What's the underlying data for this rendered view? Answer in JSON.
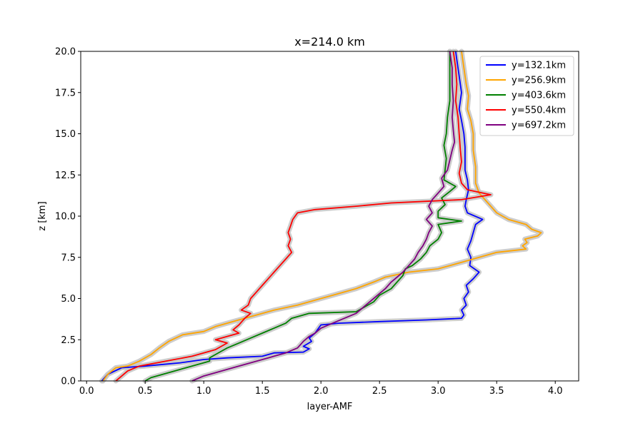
{
  "chart_data": {
    "type": "line",
    "title": "x=214.0 km",
    "xlabel": "layer-AMF",
    "ylabel": "z [km]",
    "xlim": [
      -0.05,
      4.2
    ],
    "ylim": [
      0,
      20
    ],
    "xticks": [
      0.0,
      0.5,
      1.0,
      1.5,
      2.0,
      2.5,
      3.0,
      3.5,
      4.0
    ],
    "yticks": [
      0.0,
      2.5,
      5.0,
      7.5,
      10.0,
      12.5,
      15.0,
      17.5,
      20.0
    ],
    "xtick_labels": [
      "0.0",
      "0.5",
      "1.0",
      "1.5",
      "2.0",
      "2.5",
      "3.0",
      "3.5",
      "4.0"
    ],
    "ytick_labels": [
      "0.0",
      "2.5",
      "5.0",
      "7.5",
      "10.0",
      "12.5",
      "15.0",
      "17.5",
      "20.0"
    ],
    "grid": false,
    "legend_position": "top-right",
    "uncertainty_band_color": "#c8c8c8",
    "series": [
      {
        "name": "y=132.1km",
        "color": "#0000ff",
        "points": [
          [
            0.13,
            0
          ],
          [
            0.18,
            0.4
          ],
          [
            0.3,
            0.8
          ],
          [
            0.5,
            0.9
          ],
          [
            0.8,
            1.1
          ],
          [
            1.0,
            1.3
          ],
          [
            1.2,
            1.4
          ],
          [
            1.5,
            1.5
          ],
          [
            1.6,
            1.7
          ],
          [
            1.85,
            1.75
          ],
          [
            1.9,
            1.95
          ],
          [
            1.85,
            2.1
          ],
          [
            1.92,
            2.4
          ],
          [
            1.9,
            2.6
          ],
          [
            1.95,
            2.9
          ],
          [
            1.98,
            3.2
          ],
          [
            2.0,
            3.4
          ],
          [
            2.15,
            3.5
          ],
          [
            2.5,
            3.6
          ],
          [
            2.9,
            3.7
          ],
          [
            3.2,
            3.8
          ],
          [
            3.22,
            4.0
          ],
          [
            3.2,
            4.3
          ],
          [
            3.24,
            4.6
          ],
          [
            3.22,
            5.0
          ],
          [
            3.26,
            5.4
          ],
          [
            3.24,
            5.8
          ],
          [
            3.3,
            6.2
          ],
          [
            3.35,
            6.6
          ],
          [
            3.27,
            7.0
          ],
          [
            3.28,
            7.5
          ],
          [
            3.25,
            8.0
          ],
          [
            3.28,
            8.5
          ],
          [
            3.3,
            9.0
          ],
          [
            3.32,
            9.5
          ],
          [
            3.38,
            9.8
          ],
          [
            3.25,
            10.2
          ],
          [
            3.23,
            10.6
          ],
          [
            3.24,
            11.0
          ],
          [
            3.26,
            11.6
          ],
          [
            3.25,
            12.2
          ],
          [
            3.23,
            12.8
          ],
          [
            3.23,
            13.5
          ],
          [
            3.23,
            14.2
          ],
          [
            3.22,
            15.0
          ],
          [
            3.2,
            15.8
          ],
          [
            3.18,
            16.5
          ],
          [
            3.2,
            17.5
          ],
          [
            3.18,
            18.5
          ],
          [
            3.16,
            19.5
          ],
          [
            3.15,
            20
          ]
        ]
      },
      {
        "name": "y=256.9km",
        "color": "#ffa500",
        "points": [
          [
            0.14,
            0
          ],
          [
            0.18,
            0.4
          ],
          [
            0.25,
            0.8
          ],
          [
            0.35,
            0.9
          ],
          [
            0.45,
            1.2
          ],
          [
            0.55,
            1.6
          ],
          [
            0.62,
            2.0
          ],
          [
            0.7,
            2.4
          ],
          [
            0.82,
            2.8
          ],
          [
            1.0,
            3.0
          ],
          [
            1.1,
            3.3
          ],
          [
            1.25,
            3.6
          ],
          [
            1.4,
            3.9
          ],
          [
            1.6,
            4.3
          ],
          [
            1.8,
            4.6
          ],
          [
            2.0,
            5.0
          ],
          [
            2.15,
            5.3
          ],
          [
            2.3,
            5.6
          ],
          [
            2.45,
            6.0
          ],
          [
            2.55,
            6.3
          ],
          [
            2.75,
            6.6
          ],
          [
            3.0,
            6.8
          ],
          [
            3.2,
            7.2
          ],
          [
            3.35,
            7.5
          ],
          [
            3.5,
            7.8
          ],
          [
            3.75,
            8.0
          ],
          [
            3.72,
            8.2
          ],
          [
            3.76,
            8.4
          ],
          [
            3.74,
            8.6
          ],
          [
            3.85,
            8.8
          ],
          [
            3.88,
            9.0
          ],
          [
            3.8,
            9.2
          ],
          [
            3.75,
            9.5
          ],
          [
            3.6,
            9.8
          ],
          [
            3.5,
            10.2
          ],
          [
            3.45,
            10.6
          ],
          [
            3.4,
            11.0
          ],
          [
            3.35,
            11.4
          ],
          [
            3.32,
            12.0
          ],
          [
            3.32,
            13.0
          ],
          [
            3.3,
            14.0
          ],
          [
            3.3,
            15.0
          ],
          [
            3.28,
            15.8
          ],
          [
            3.25,
            16.5
          ],
          [
            3.26,
            17.3
          ],
          [
            3.24,
            18.0
          ],
          [
            3.22,
            19.0
          ],
          [
            3.2,
            20
          ]
        ]
      },
      {
        "name": "y=403.6km",
        "color": "#008000",
        "points": [
          [
            0.5,
            0
          ],
          [
            0.55,
            0.2
          ],
          [
            0.65,
            0.4
          ],
          [
            0.75,
            0.6
          ],
          [
            0.85,
            0.8
          ],
          [
            0.95,
            1.0
          ],
          [
            1.05,
            1.2
          ],
          [
            1.05,
            1.4
          ],
          [
            1.1,
            1.6
          ],
          [
            1.15,
            1.8
          ],
          [
            1.2,
            2.0
          ],
          [
            1.3,
            2.3
          ],
          [
            1.4,
            2.6
          ],
          [
            1.5,
            2.9
          ],
          [
            1.6,
            3.2
          ],
          [
            1.7,
            3.5
          ],
          [
            1.75,
            3.8
          ],
          [
            1.9,
            4.1
          ],
          [
            2.3,
            4.2
          ],
          [
            2.35,
            4.4
          ],
          [
            2.45,
            4.8
          ],
          [
            2.5,
            5.2
          ],
          [
            2.6,
            5.6
          ],
          [
            2.65,
            6.0
          ],
          [
            2.7,
            6.4
          ],
          [
            2.72,
            6.8
          ],
          [
            2.78,
            7.0
          ],
          [
            2.85,
            7.4
          ],
          [
            2.9,
            7.8
          ],
          [
            2.93,
            8.2
          ],
          [
            3.0,
            8.6
          ],
          [
            3.03,
            9.0
          ],
          [
            3.0,
            9.5
          ],
          [
            3.2,
            9.7
          ],
          [
            3.0,
            9.9
          ],
          [
            3.0,
            10.3
          ],
          [
            3.06,
            10.7
          ],
          [
            3.03,
            11.1
          ],
          [
            3.1,
            11.5
          ],
          [
            3.15,
            11.8
          ],
          [
            3.05,
            12.2
          ],
          [
            3.06,
            12.8
          ],
          [
            3.07,
            13.5
          ],
          [
            3.05,
            14.3
          ],
          [
            3.07,
            15.0
          ],
          [
            3.08,
            16.0
          ],
          [
            3.1,
            17.0
          ],
          [
            3.1,
            18.0
          ],
          [
            3.1,
            19.0
          ],
          [
            3.1,
            20
          ]
        ]
      },
      {
        "name": "y=550.4km",
        "color": "#ff0000",
        "points": [
          [
            0.25,
            0
          ],
          [
            0.3,
            0.3
          ],
          [
            0.35,
            0.6
          ],
          [
            0.45,
            0.9
          ],
          [
            0.6,
            1.1
          ],
          [
            0.75,
            1.3
          ],
          [
            0.9,
            1.5
          ],
          [
            1.0,
            1.7
          ],
          [
            1.1,
            1.9
          ],
          [
            1.15,
            2.1
          ],
          [
            1.2,
            2.3
          ],
          [
            1.1,
            2.5
          ],
          [
            1.2,
            2.7
          ],
          [
            1.3,
            2.9
          ],
          [
            1.25,
            3.1
          ],
          [
            1.3,
            3.4
          ],
          [
            1.35,
            3.8
          ],
          [
            1.4,
            4.1
          ],
          [
            1.32,
            4.3
          ],
          [
            1.38,
            4.6
          ],
          [
            1.4,
            5.0
          ],
          [
            1.45,
            5.4
          ],
          [
            1.5,
            5.8
          ],
          [
            1.55,
            6.2
          ],
          [
            1.6,
            6.6
          ],
          [
            1.65,
            7.0
          ],
          [
            1.7,
            7.4
          ],
          [
            1.75,
            7.8
          ],
          [
            1.72,
            8.2
          ],
          [
            1.74,
            8.6
          ],
          [
            1.72,
            9.0
          ],
          [
            1.74,
            9.4
          ],
          [
            1.76,
            9.8
          ],
          [
            1.8,
            10.2
          ],
          [
            1.95,
            10.4
          ],
          [
            2.3,
            10.6
          ],
          [
            2.6,
            10.8
          ],
          [
            2.9,
            10.9
          ],
          [
            3.2,
            11.0
          ],
          [
            3.45,
            11.3
          ],
          [
            3.25,
            11.6
          ],
          [
            3.2,
            12.0
          ],
          [
            3.18,
            12.6
          ],
          [
            3.2,
            13.3
          ],
          [
            3.19,
            14.0
          ],
          [
            3.18,
            15.0
          ],
          [
            3.17,
            16.0
          ],
          [
            3.15,
            17.0
          ],
          [
            3.16,
            18.0
          ],
          [
            3.15,
            19.0
          ],
          [
            3.13,
            20
          ]
        ]
      },
      {
        "name": "y=697.2km",
        "color": "#800080",
        "points": [
          [
            0.9,
            0
          ],
          [
            1.0,
            0.3
          ],
          [
            1.1,
            0.5
          ],
          [
            1.25,
            0.8
          ],
          [
            1.4,
            1.1
          ],
          [
            1.55,
            1.4
          ],
          [
            1.7,
            1.7
          ],
          [
            1.8,
            2.0
          ],
          [
            1.85,
            2.4
          ],
          [
            1.9,
            2.7
          ],
          [
            1.95,
            2.9
          ],
          [
            2.0,
            3.2
          ],
          [
            2.1,
            3.5
          ],
          [
            2.2,
            3.8
          ],
          [
            2.3,
            4.1
          ],
          [
            2.35,
            4.4
          ],
          [
            2.4,
            4.7
          ],
          [
            2.45,
            5.0
          ],
          [
            2.5,
            5.3
          ],
          [
            2.55,
            5.6
          ],
          [
            2.6,
            6.0
          ],
          [
            2.65,
            6.3
          ],
          [
            2.7,
            6.6
          ],
          [
            2.75,
            7.0
          ],
          [
            2.8,
            7.4
          ],
          [
            2.83,
            7.8
          ],
          [
            2.87,
            8.2
          ],
          [
            2.9,
            8.6
          ],
          [
            2.92,
            9.0
          ],
          [
            2.95,
            9.4
          ],
          [
            2.9,
            9.8
          ],
          [
            2.95,
            10.2
          ],
          [
            2.92,
            10.6
          ],
          [
            2.95,
            11.0
          ],
          [
            3.0,
            11.4
          ],
          [
            3.05,
            11.8
          ],
          [
            3.03,
            12.3
          ],
          [
            3.08,
            12.8
          ],
          [
            3.1,
            13.4
          ],
          [
            3.12,
            14.0
          ],
          [
            3.14,
            14.5
          ],
          [
            3.13,
            15.2
          ],
          [
            3.12,
            16.0
          ],
          [
            3.13,
            17.0
          ],
          [
            3.12,
            18.0
          ],
          [
            3.12,
            19.0
          ],
          [
            3.1,
            20
          ]
        ]
      }
    ]
  }
}
